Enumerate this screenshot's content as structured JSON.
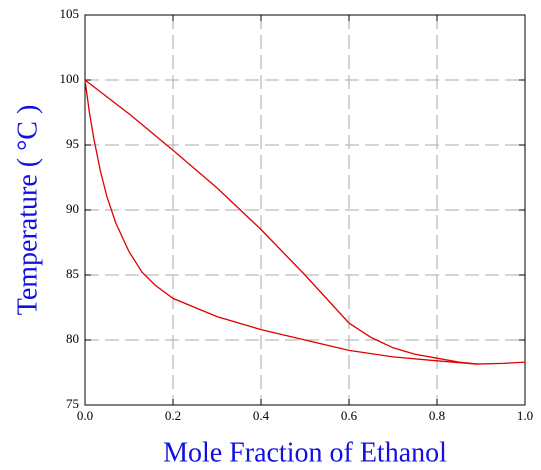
{
  "chart_data": {
    "type": "line",
    "xlabel": "Mole Fraction of Ethanol",
    "ylabel": "Temperature ( °C )",
    "xlim": [
      0,
      1
    ],
    "ylim": [
      75,
      105
    ],
    "xticks": [
      {
        "value": 0,
        "label": "0.0"
      },
      {
        "value": 0.2,
        "label": "0.2"
      },
      {
        "value": 0.4,
        "label": "0.4"
      },
      {
        "value": 0.6,
        "label": "0.6"
      },
      {
        "value": 0.8,
        "label": "0.8"
      },
      {
        "value": 1,
        "label": "1.0"
      }
    ],
    "yticks": [
      75,
      80,
      85,
      90,
      95,
      100,
      105
    ],
    "grid": true,
    "series": [
      {
        "color": "#e00000",
        "x": [
          0,
          0.01,
          0.02,
          0.035,
          0.05,
          0.07,
          0.1,
          0.13,
          0.16,
          0.2,
          0.3,
          0.4,
          0.5,
          0.6,
          0.7,
          0.8,
          0.89,
          0.95,
          1.0
        ],
        "values": [
          100,
          97.5,
          95.5,
          93,
          91,
          89,
          86.8,
          85.2,
          84.2,
          83.2,
          81.8,
          80.8,
          80,
          79.2,
          78.7,
          78.4,
          78.15,
          78.2,
          78.3
        ]
      },
      {
        "color": "#e00000",
        "x": [
          0,
          0.1,
          0.2,
          0.3,
          0.4,
          0.5,
          0.6,
          0.65,
          0.7,
          0.75,
          0.8,
          0.85,
          0.89
        ],
        "values": [
          100,
          97.4,
          94.6,
          91.7,
          88.5,
          85,
          81.3,
          80.2,
          79.4,
          78.9,
          78.6,
          78.3,
          78.15
        ]
      }
    ]
  }
}
